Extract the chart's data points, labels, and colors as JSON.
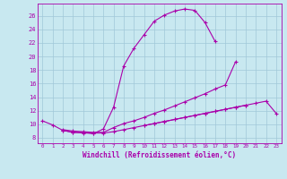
{
  "bg_color": "#c8e8f0",
  "grid_color": "#a0c8d8",
  "line_color": "#aa00aa",
  "marker": "+",
  "xlabel": "Windchill (Refroidissement éolien,°C)",
  "xlabel_color": "#aa00aa",
  "ylabel_ticks": [
    8,
    10,
    12,
    14,
    16,
    18,
    20,
    22,
    24,
    26
  ],
  "xticks": [
    0,
    1,
    2,
    3,
    4,
    5,
    6,
    7,
    8,
    9,
    10,
    11,
    12,
    13,
    14,
    15,
    16,
    17,
    18,
    19,
    20,
    21,
    22,
    23
  ],
  "xlim": [
    -0.5,
    23.5
  ],
  "ylim": [
    7.2,
    27.8
  ],
  "lines": [
    [
      10.5,
      9.9,
      9.1,
      8.8,
      8.8,
      8.6,
      9.3,
      12.5,
      18.6,
      21.2,
      23.2,
      25.2,
      26.1,
      26.7,
      27.0,
      26.8,
      25.0,
      22.2,
      null,
      null,
      null,
      null,
      null,
      null
    ],
    [
      null,
      null,
      9.2,
      9.0,
      8.9,
      8.8,
      8.8,
      9.5,
      10.1,
      10.5,
      11.0,
      11.6,
      12.1,
      12.7,
      13.3,
      13.9,
      14.5,
      15.2,
      15.8,
      19.2,
      null,
      null,
      null,
      null
    ],
    [
      null,
      null,
      9.1,
      8.8,
      8.7,
      8.7,
      8.7,
      8.9,
      9.2,
      9.5,
      9.8,
      10.1,
      10.4,
      10.7,
      11.0,
      11.3,
      11.6,
      11.9,
      12.2,
      12.5,
      12.8,
      null,
      null,
      null
    ],
    [
      null,
      null,
      null,
      null,
      null,
      null,
      null,
      null,
      null,
      null,
      9.8,
      10.1,
      10.4,
      10.7,
      11.0,
      11.3,
      11.6,
      11.9,
      12.2,
      12.5,
      12.8,
      13.1,
      13.4,
      11.6
    ]
  ]
}
